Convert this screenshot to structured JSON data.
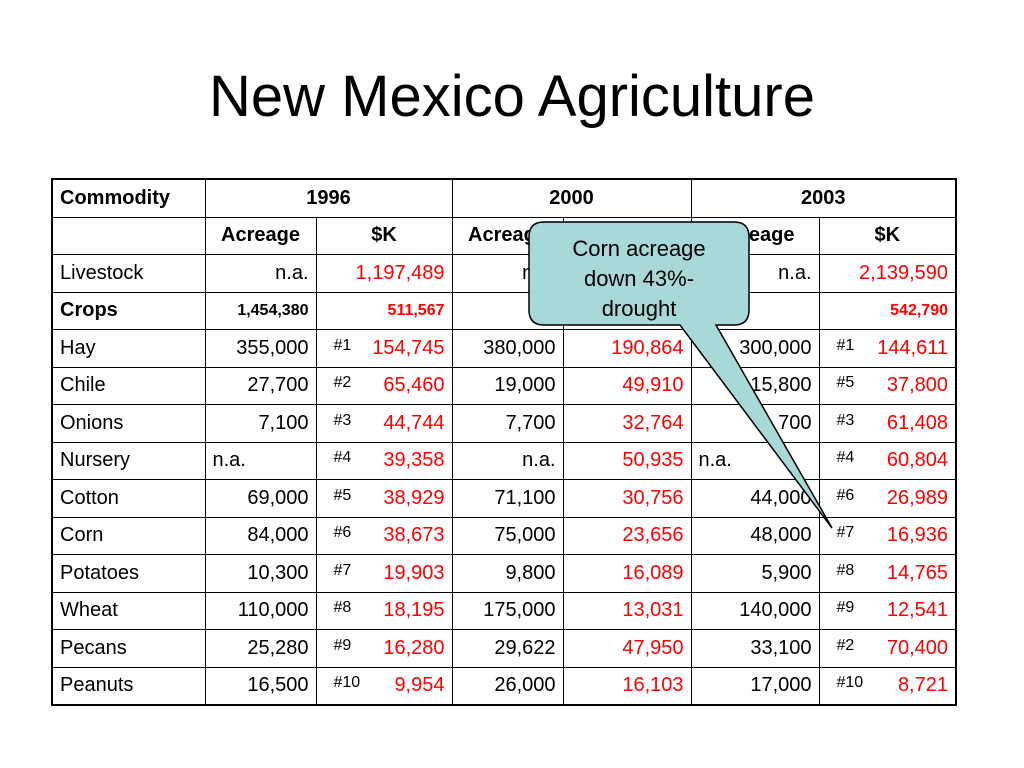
{
  "title": "New Mexico Agriculture",
  "header": {
    "commodity": "Commodity",
    "years": [
      "1996",
      "2000",
      "2003"
    ],
    "acreage": "Acreage",
    "dollars": "$K"
  },
  "rows": [
    {
      "name": "Livestock",
      "y1996": {
        "acreage": "n.a.",
        "rank": "",
        "value": "1,197,489"
      },
      "y2000": {
        "acreage": "n.a.",
        "rank": "",
        "value": ""
      },
      "y2003": {
        "acreage": "n.a.",
        "rank": "",
        "value": "2,139,590"
      }
    },
    {
      "name": "Crops",
      "y1996": {
        "acreage": "1,454,380",
        "rank": "",
        "value": "511,567"
      },
      "y2000": {
        "acreage": "",
        "rank": "",
        "value": ""
      },
      "y2003": {
        "acreage": "",
        "rank": "",
        "value": "542,790"
      }
    },
    {
      "name": "Hay",
      "y1996": {
        "acreage": "355,000",
        "rank": "#1",
        "value": "154,745"
      },
      "y2000": {
        "acreage": "380,000",
        "rank": "",
        "value": "190,864"
      },
      "y2003": {
        "acreage": "300,000",
        "rank": "#1",
        "value": "144,611"
      }
    },
    {
      "name": "Chile",
      "y1996": {
        "acreage": "27,700",
        "rank": "#2",
        "value": "65,460"
      },
      "y2000": {
        "acreage": "19,000",
        "rank": "",
        "value": "49,910"
      },
      "y2003": {
        "acreage": "15,800",
        "rank": "#5",
        "value": "37,800"
      }
    },
    {
      "name": "Onions",
      "y1996": {
        "acreage": "7,100",
        "rank": "#3",
        "value": "44,744"
      },
      "y2000": {
        "acreage": "7,700",
        "rank": "",
        "value": "32,764"
      },
      "y2003": {
        "acreage": "700",
        "rank": "#3",
        "value": "61,408"
      }
    },
    {
      "name": "Nursery",
      "y1996": {
        "acreage": "n.a.",
        "rank": "#4",
        "value": "39,358"
      },
      "y2000": {
        "acreage": "n.a.",
        "rank": "",
        "value": "50,935"
      },
      "y2003": {
        "acreage": "n.a.",
        "rank": "#4",
        "value": "60,804"
      }
    },
    {
      "name": "Cotton",
      "y1996": {
        "acreage": "69,000",
        "rank": "#5",
        "value": "38,929"
      },
      "y2000": {
        "acreage": "71,100",
        "rank": "",
        "value": "30,756"
      },
      "y2003": {
        "acreage": "44,000",
        "rank": "#6",
        "value": "26,989"
      }
    },
    {
      "name": "Corn",
      "y1996": {
        "acreage": "84,000",
        "rank": "#6",
        "value": "38,673"
      },
      "y2000": {
        "acreage": "75,000",
        "rank": "",
        "value": "23,656"
      },
      "y2003": {
        "acreage": "48,000",
        "rank": "#7",
        "value": "16,936"
      }
    },
    {
      "name": "Potatoes",
      "y1996": {
        "acreage": "10,300",
        "rank": "#7",
        "value": "19,903"
      },
      "y2000": {
        "acreage": "9,800",
        "rank": "",
        "value": "16,089"
      },
      "y2003": {
        "acreage": "5,900",
        "rank": "#8",
        "value": "14,765"
      }
    },
    {
      "name": "Wheat",
      "y1996": {
        "acreage": "110,000",
        "rank": "#8",
        "value": "18,195"
      },
      "y2000": {
        "acreage": "175,000",
        "rank": "",
        "value": "13,031"
      },
      "y2003": {
        "acreage": "140,000",
        "rank": "#9",
        "value": "12,541"
      }
    },
    {
      "name": "Pecans",
      "y1996": {
        "acreage": "25,280",
        "rank": "#9",
        "value": "16,280"
      },
      "y2000": {
        "acreage": "29,622",
        "rank": "",
        "value": "47,950"
      },
      "y2003": {
        "acreage": "33,100",
        "rank": "#2",
        "value": "70,400"
      }
    },
    {
      "name": "Peanuts",
      "y1996": {
        "acreage": "16,500",
        "rank": "#10",
        "value": "9,954"
      },
      "y2000": {
        "acreage": "26,000",
        "rank": "",
        "value": "16,103"
      },
      "y2003": {
        "acreage": "17,000",
        "rank": "#10",
        "value": "8,721"
      }
    }
  ],
  "callout": {
    "lines": [
      "Corn acreage",
      "down 43%-",
      "drought"
    ],
    "fill": "#a8d8d8",
    "stroke": "#000000"
  },
  "colors": {
    "value_red": "#ff0000"
  }
}
